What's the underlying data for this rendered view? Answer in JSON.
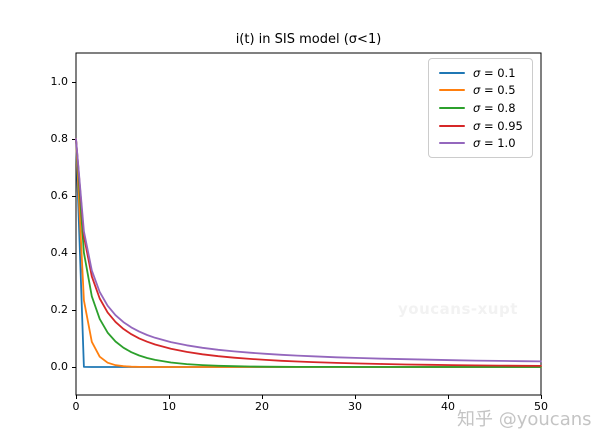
{
  "figure": {
    "title": "i(t) in SIS model (σ<1)"
  },
  "watermarks": {
    "center": "youcans-xupt",
    "bottom_right": "知乎 @youcans"
  },
  "chart_data": {
    "type": "line",
    "title": "i(t) in SIS model (σ<1)",
    "xlabel": "",
    "ylabel": "",
    "xlim": [
      0,
      50
    ],
    "ylim": [
      -0.098,
      1.102
    ],
    "grid": false,
    "legend_position": "upper right",
    "axis_color": "#000000",
    "x_ticks": [
      0,
      10,
      20,
      30,
      40,
      50
    ],
    "x_tick_labels": [
      "0",
      "10",
      "20",
      "30",
      "40",
      "50"
    ],
    "y_ticks": [
      0.0,
      0.2,
      0.4,
      0.6,
      0.8,
      1.0
    ],
    "y_tick_labels": [
      "0.0",
      "0.2",
      "0.4",
      "0.6",
      "0.8",
      "1.0"
    ],
    "x": [
      0,
      0.85,
      1.7,
      2.55,
      3.4,
      4.25,
      5.1,
      5.95,
      6.8,
      7.65,
      8.5,
      10.2,
      11.9,
      13.6,
      15.3,
      17,
      18.7,
      20.4,
      22.1,
      23.8,
      25.5,
      28,
      30.5,
      33,
      35.5,
      38,
      40.5,
      43,
      45.5,
      48,
      50
    ],
    "series": [
      {
        "id": "sigma-0.1",
        "label": "σ = 0.1",
        "label_symbol": "σ",
        "label_rest": " = 0.1",
        "color": "#1f77b4",
        "values": [
          0.8,
          0.0003,
          0,
          0,
          0,
          0,
          0,
          0,
          0,
          0,
          0,
          0,
          0,
          0,
          0,
          0,
          0,
          0,
          0,
          0,
          0,
          0,
          0,
          0,
          0,
          0,
          0,
          0,
          0,
          0,
          0
        ]
      },
      {
        "id": "sigma-0.5",
        "label": "σ = 0.5",
        "label_symbol": "σ",
        "label_rest": " = 0.5",
        "color": "#ff7f0e",
        "values": [
          0.8,
          0.234,
          0.0884,
          0.036,
          0.0151,
          0.0064,
          0.0027,
          0.0012,
          0.0005,
          0.0002,
          0.0001,
          0,
          0,
          0,
          0,
          0,
          0,
          0,
          0,
          0,
          0,
          0,
          0,
          0,
          0,
          0,
          0,
          0,
          0,
          0,
          0
        ]
      },
      {
        "id": "sigma-0.8",
        "label": "σ = 0.8",
        "label_symbol": "σ",
        "label_rest": " = 0.8",
        "color": "#2ca02c",
        "values": [
          0.8,
          0.4012,
          0.2482,
          0.1686,
          0.1207,
          0.0894,
          0.0676,
          0.052,
          0.0404,
          0.0317,
          0.025,
          0.0158,
          0.0101,
          0.0065,
          0.0042,
          0.0028,
          0.0018,
          0.0012,
          0.0008,
          0.0005,
          0.0003,
          0.0002,
          0.0001,
          0.0001,
          0,
          0,
          0,
          0,
          0,
          0,
          0
        ]
      },
      {
        "id": "sigma-0.95",
        "label": "σ = 0.95",
        "label_symbol": "σ",
        "label_rest": " = 0.95",
        "color": "#d62728",
        "values": [
          0.8,
          0.459,
          0.3178,
          0.2404,
          0.1917,
          0.1581,
          0.1336,
          0.115,
          0.1003,
          0.0886,
          0.0789,
          0.0639,
          0.0529,
          0.0446,
          0.038,
          0.0327,
          0.0284,
          0.0248,
          0.0218,
          0.0193,
          0.0171,
          0.0144,
          0.0122,
          0.0104,
          0.0089,
          0.0077,
          0.0066,
          0.0057,
          0.0049,
          0.0043,
          0.0038
        ]
      },
      {
        "id": "sigma-1.0",
        "label": "σ = 1.0",
        "label_symbol": "σ",
        "label_rest": " = 1.0",
        "color": "#9467bd",
        "values": [
          0.8,
          0.4762,
          0.339,
          0.2632,
          0.2151,
          0.1818,
          0.1575,
          0.1389,
          0.1242,
          0.1124,
          0.1026,
          0.0873,
          0.076,
          0.0673,
          0.0604,
          0.0548,
          0.0501,
          0.0462,
          0.0428,
          0.0399,
          0.0374,
          0.0342,
          0.0315,
          0.0292,
          0.0272,
          0.0255,
          0.024,
          0.0226,
          0.0214,
          0.0203,
          0.0195
        ]
      }
    ]
  }
}
